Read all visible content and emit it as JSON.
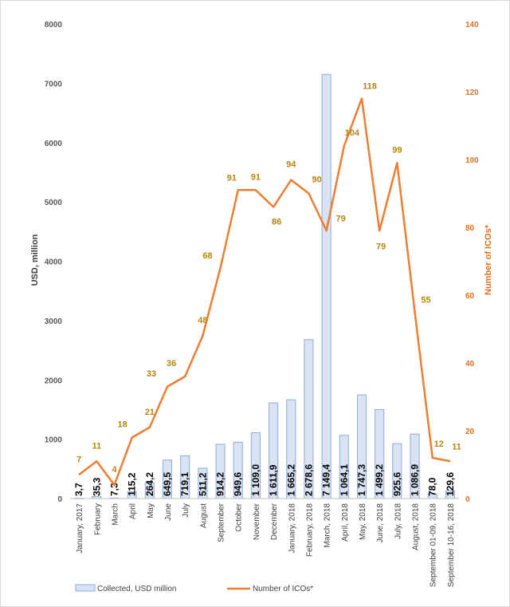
{
  "chart_data": {
    "type": "bar",
    "categories": [
      "January, 2017",
      "February",
      "March",
      "April",
      "May",
      "June",
      "July",
      "August",
      "September",
      "October",
      "November",
      "December",
      "January, 2018",
      "February, 2018",
      "March, 2018",
      "April, 2018",
      "May, 2018",
      "June, 2018",
      "July, 2018",
      "August, 2018",
      "September 01-09, 2018",
      "September 10-16, 2018"
    ],
    "series": [
      {
        "name": "Collected, USD million",
        "axis": "left",
        "type": "bar",
        "color": "#dae3f3",
        "edge_color": "#8faadc",
        "values": [
          3.7,
          35.3,
          7.3,
          115.2,
          264.2,
          649.5,
          719.1,
          511.2,
          914.2,
          949.6,
          1109.0,
          1611.9,
          1665.2,
          2678.6,
          7149.4,
          1064.1,
          1747.3,
          1499.2,
          925.6,
          1086.9,
          78.0,
          129.6
        ],
        "labels": [
          "3,7",
          "35,3",
          "7,3",
          "115,2",
          "264,2",
          "649,5",
          "719,1",
          "511,2",
          "914,2",
          "949,6",
          "1 109,0",
          "1 611,9",
          "1 665,2",
          "2 678,6",
          "7 149,4",
          "1 064,1",
          "1 747,3",
          "1 499,2",
          "925,6",
          "1 086,9",
          "78,0",
          "129,6"
        ]
      },
      {
        "name": "Number of ICOs*",
        "axis": "right",
        "type": "line",
        "color": "#ed7d31",
        "values": [
          7,
          11,
          4,
          18,
          21,
          33,
          36,
          48,
          68,
          91,
          91,
          86,
          94,
          90,
          79,
          104,
          118,
          79,
          99,
          55,
          12,
          11
        ],
        "labels": [
          "7",
          "11",
          "4",
          "18",
          "21",
          "33",
          "36",
          "48",
          "68",
          "91",
          "91",
          "86",
          "94",
          "90",
          "79",
          "104",
          "118",
          "79",
          "99",
          "55",
          "12",
          "11"
        ]
      }
    ],
    "ylabel": "USD, million",
    "y2label": "Number of ICOs*",
    "ylim": [
      0,
      8000
    ],
    "y2lim": [
      0,
      140
    ],
    "yticks": [
      "0",
      "1000",
      "2000",
      "3000",
      "4000",
      "5000",
      "6000",
      "7000",
      "8000"
    ],
    "y2ticks": [
      "0",
      "20",
      "40",
      "60",
      "80",
      "100",
      "120",
      "140"
    ],
    "legend": "bottom",
    "grid": false
  }
}
